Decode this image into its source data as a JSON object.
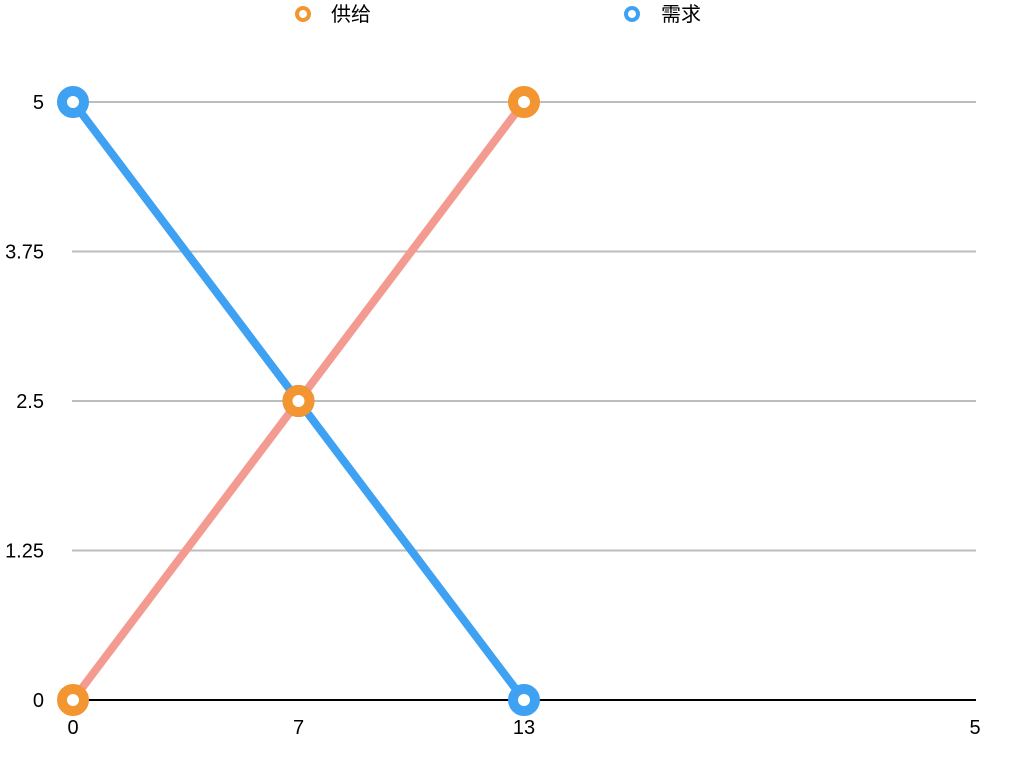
{
  "chart_data": {
    "type": "line",
    "categories": [
      "0",
      "7",
      "13",
      "",
      "5"
    ],
    "series": [
      {
        "name": "供给",
        "values": [
          0,
          2.5,
          5,
          null,
          null
        ],
        "line_color": "#F49B91",
        "marker_color": "#F39530"
      },
      {
        "name": "需求",
        "values": [
          5,
          2.5,
          0,
          null,
          null
        ],
        "line_color": "#3FA1F2",
        "marker_color": "#3FA1F2"
      }
    ],
    "ylim": [
      0,
      5
    ],
    "yticks": [
      0,
      1.25,
      2.5,
      3.75,
      5
    ],
    "ytick_labels": [
      "0",
      "1.25",
      "2.5",
      "3.75",
      "5"
    ],
    "grid": true,
    "grid_color": "#BDBDBD",
    "axis_color": "#000000",
    "legend": "top"
  }
}
